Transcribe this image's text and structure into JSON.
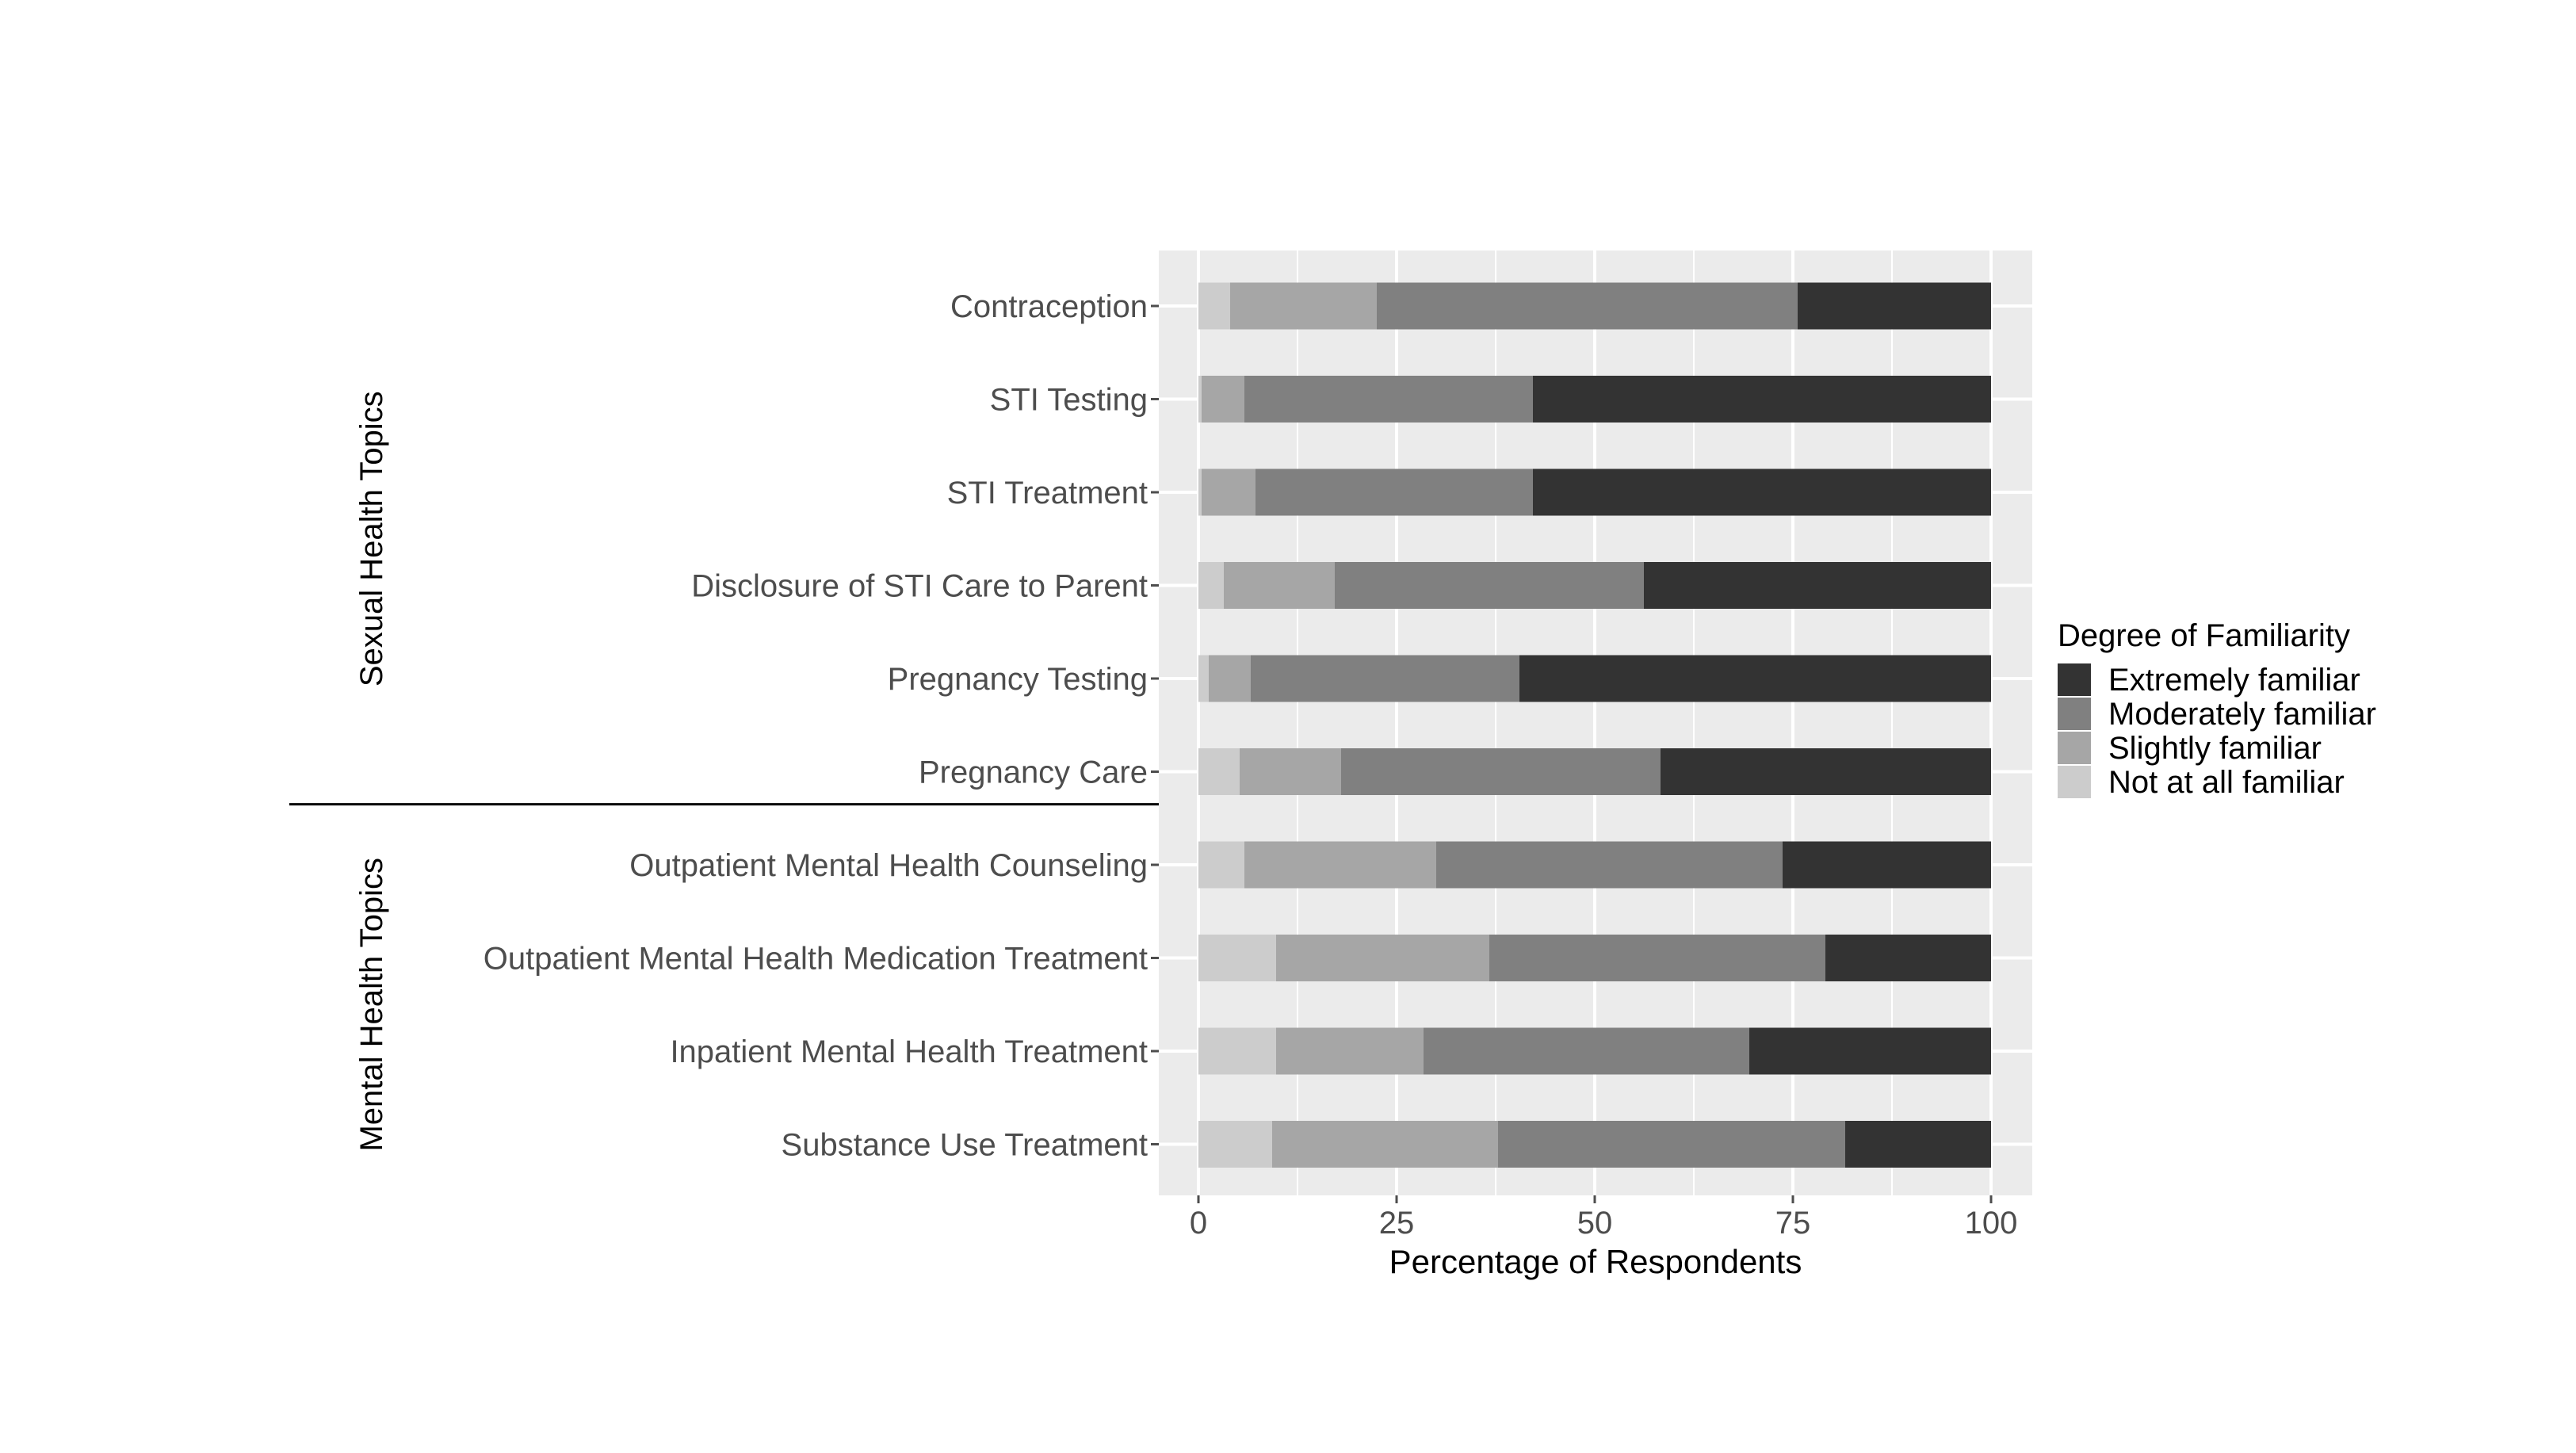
{
  "chart_data": {
    "type": "bar",
    "orientation": "horizontal",
    "stacked": true,
    "xlabel": "Percentage of Respondents",
    "xlim": [
      0,
      100
    ],
    "xticks": [
      0,
      25,
      50,
      75,
      100
    ],
    "grid": true,
    "categories": [
      "Contraception",
      "STI Testing",
      "STI Treatment",
      "Disclosure of STI Care to Parent",
      "Pregnancy Testing",
      "Pregnancy Care",
      "Outpatient Mental Health Counseling",
      "Outpatient Mental Health Medication Treatment",
      "Inpatient Mental Health Treatment",
      "Substance Use Treatment"
    ],
    "groups": [
      {
        "label": "Sexual Health Topics",
        "categories": [
          "Contraception",
          "STI Testing",
          "STI Treatment",
          "Disclosure of STI Care to Parent",
          "Pregnancy Testing",
          "Pregnancy Care"
        ]
      },
      {
        "label": "Mental Health Topics",
        "categories": [
          "Outpatient Mental Health Counseling",
          "Outpatient Mental Health Medication Treatment",
          "Inpatient Mental Health Treatment",
          "Substance Use Treatment"
        ]
      }
    ],
    "legend": {
      "title": "Degree of Familiarity",
      "position": "right"
    },
    "series": [
      {
        "name": "Not at all familiar",
        "color": "#cccccc",
        "values": [
          4,
          0.4,
          0.4,
          3.2,
          1.3,
          5.2,
          5.8,
          9.8,
          9.8,
          9.3
        ]
      },
      {
        "name": "Slightly familiar",
        "color": "#a6a6a6",
        "values": [
          18.5,
          5.4,
          6.8,
          14.0,
          5.3,
          12.8,
          24.2,
          26.9,
          18.6,
          28.5
        ]
      },
      {
        "name": "Moderately familiar",
        "color": "#808080",
        "values": [
          53.1,
          36.4,
          35.0,
          39.0,
          33.9,
          40.3,
          43.7,
          42.4,
          41.1,
          43.8
        ]
      },
      {
        "name": "Extremely familiar",
        "color": "#333333",
        "values": [
          24.4,
          57.8,
          57.8,
          43.8,
          59.5,
          41.7,
          26.3,
          20.9,
          30.5,
          18.4
        ]
      }
    ],
    "legend_order": [
      "Extremely familiar",
      "Moderately familiar",
      "Slightly familiar",
      "Not at all familiar"
    ]
  }
}
